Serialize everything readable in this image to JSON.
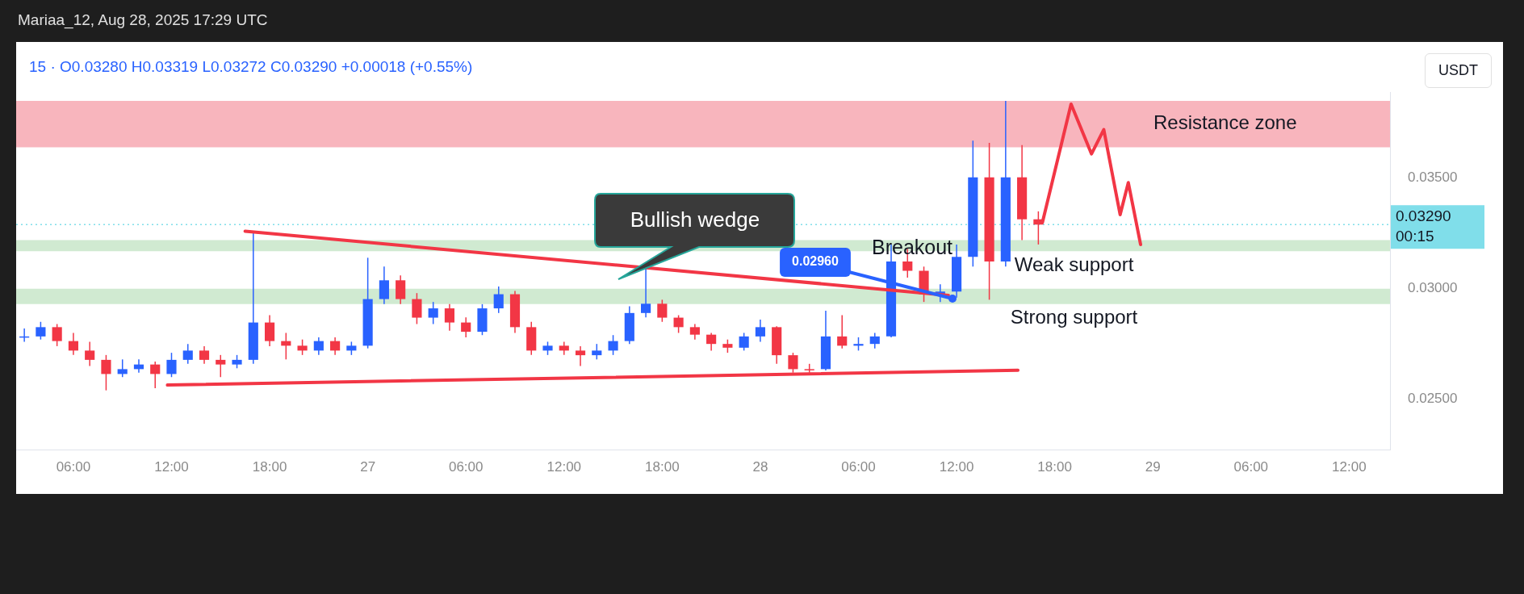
{
  "chart_data": {
    "type": "candlestick",
    "title": "Mariaa_12, Aug 28, 2025 17:29 UTC",
    "subtitle": "15 · O0.03280 H0.03319 L0.03272 C0.03290 +0.00018 (+0.55%)",
    "x": [
      "2025-08-26T03:00",
      "2025-08-26T04:00",
      "2025-08-26T05:00",
      "2025-08-26T06:00",
      "2025-08-26T07:00",
      "2025-08-26T08:00",
      "2025-08-26T09:00",
      "2025-08-26T10:00",
      "2025-08-26T11:00",
      "2025-08-26T12:00",
      "2025-08-26T13:00",
      "2025-08-26T14:00",
      "2025-08-26T15:00",
      "2025-08-26T16:00",
      "2025-08-26T17:00",
      "2025-08-26T18:00",
      "2025-08-26T19:00",
      "2025-08-26T20:00",
      "2025-08-26T21:00",
      "2025-08-26T22:00",
      "2025-08-26T23:00",
      "2025-08-27T00:00",
      "2025-08-27T01:00",
      "2025-08-27T02:00",
      "2025-08-27T03:00",
      "2025-08-27T04:00",
      "2025-08-27T05:00",
      "2025-08-27T06:00",
      "2025-08-27T07:00",
      "2025-08-27T08:00",
      "2025-08-27T09:00",
      "2025-08-27T10:00",
      "2025-08-27T11:00",
      "2025-08-27T12:00",
      "2025-08-27T13:00",
      "2025-08-27T14:00",
      "2025-08-27T15:00",
      "2025-08-27T16:00",
      "2025-08-27T17:00",
      "2025-08-27T18:00",
      "2025-08-27T19:00",
      "2025-08-27T20:00",
      "2025-08-27T21:00",
      "2025-08-27T22:00",
      "2025-08-27T23:00",
      "2025-08-28T00:00",
      "2025-08-28T01:00",
      "2025-08-28T02:00",
      "2025-08-28T03:00",
      "2025-08-28T04:00",
      "2025-08-28T05:00",
      "2025-08-28T06:00",
      "2025-08-28T07:00",
      "2025-08-28T08:00",
      "2025-08-28T09:00",
      "2025-08-28T10:00",
      "2025-08-28T11:00",
      "2025-08-28T12:00",
      "2025-08-28T13:00",
      "2025-08-28T14:00",
      "2025-08-28T15:00",
      "2025-08-28T16:00",
      "2025-08-28T17:00"
    ],
    "ohlc": [
      [
        0.0278,
        0.0282,
        0.0276,
        0.02784
      ],
      [
        0.02784,
        0.0285,
        0.0277,
        0.02826
      ],
      [
        0.02826,
        0.0284,
        0.0274,
        0.02763
      ],
      [
        0.02763,
        0.028,
        0.027,
        0.0272
      ],
      [
        0.0272,
        0.0276,
        0.0265,
        0.02678
      ],
      [
        0.02678,
        0.027,
        0.0254,
        0.02614
      ],
      [
        0.02614,
        0.0268,
        0.026,
        0.02636
      ],
      [
        0.02636,
        0.0268,
        0.0262,
        0.02657
      ],
      [
        0.02657,
        0.0267,
        0.0255,
        0.02614
      ],
      [
        0.02614,
        0.0271,
        0.026,
        0.02678
      ],
      [
        0.02678,
        0.0275,
        0.0266,
        0.0272
      ],
      [
        0.0272,
        0.0274,
        0.0266,
        0.02678
      ],
      [
        0.02678,
        0.027,
        0.026,
        0.02657
      ],
      [
        0.02657,
        0.027,
        0.0264,
        0.02678
      ],
      [
        0.02678,
        0.0326,
        0.0266,
        0.02847
      ],
      [
        0.02847,
        0.0288,
        0.0274,
        0.02763
      ],
      [
        0.02763,
        0.028,
        0.0268,
        0.02742
      ],
      [
        0.02742,
        0.0277,
        0.027,
        0.0272
      ],
      [
        0.0272,
        0.0278,
        0.027,
        0.02763
      ],
      [
        0.02763,
        0.0278,
        0.027,
        0.0272
      ],
      [
        0.0272,
        0.0276,
        0.027,
        0.02742
      ],
      [
        0.02742,
        0.0314,
        0.0273,
        0.02953
      ],
      [
        0.02953,
        0.031,
        0.0293,
        0.03038
      ],
      [
        0.03038,
        0.0306,
        0.0293,
        0.02953
      ],
      [
        0.02953,
        0.0298,
        0.0284,
        0.02869
      ],
      [
        0.02869,
        0.0294,
        0.0284,
        0.02911
      ],
      [
        0.02911,
        0.0293,
        0.0281,
        0.02847
      ],
      [
        0.02847,
        0.0287,
        0.0278,
        0.02805
      ],
      [
        0.02805,
        0.0293,
        0.0279,
        0.02911
      ],
      [
        0.02911,
        0.0301,
        0.0289,
        0.02975
      ],
      [
        0.02975,
        0.0299,
        0.028,
        0.02826
      ],
      [
        0.02826,
        0.0285,
        0.027,
        0.0272
      ],
      [
        0.0272,
        0.0276,
        0.027,
        0.02742
      ],
      [
        0.02742,
        0.0276,
        0.027,
        0.0272
      ],
      [
        0.0272,
        0.0274,
        0.0265,
        0.02699
      ],
      [
        0.02699,
        0.0275,
        0.0268,
        0.0272
      ],
      [
        0.0272,
        0.0279,
        0.027,
        0.02763
      ],
      [
        0.02763,
        0.0292,
        0.0275,
        0.0289
      ],
      [
        0.0289,
        0.0309,
        0.0287,
        0.02932
      ],
      [
        0.02932,
        0.0295,
        0.0285,
        0.02869
      ],
      [
        0.02869,
        0.0288,
        0.028,
        0.02826
      ],
      [
        0.02826,
        0.0284,
        0.0277,
        0.02792
      ],
      [
        0.02792,
        0.028,
        0.0272,
        0.0275
      ],
      [
        0.0275,
        0.0277,
        0.0271,
        0.02733
      ],
      [
        0.02733,
        0.028,
        0.0272,
        0.02784
      ],
      [
        0.02784,
        0.0286,
        0.0276,
        0.02826
      ],
      [
        0.02826,
        0.0283,
        0.0266,
        0.02699
      ],
      [
        0.02699,
        0.0271,
        0.0262,
        0.02636
      ],
      [
        0.02636,
        0.0266,
        0.0262,
        0.02636
      ],
      [
        0.02636,
        0.029,
        0.0263,
        0.02784
      ],
      [
        0.02784,
        0.0288,
        0.0273,
        0.02742
      ],
      [
        0.02742,
        0.0278,
        0.0272,
        0.0275
      ],
      [
        0.0275,
        0.028,
        0.0273,
        0.02784
      ],
      [
        0.02784,
        0.032,
        0.0278,
        0.03123
      ],
      [
        0.03123,
        0.0318,
        0.0305,
        0.03081
      ],
      [
        0.03081,
        0.031,
        0.0294,
        0.02975
      ],
      [
        0.02975,
        0.0302,
        0.0294,
        0.02987
      ],
      [
        0.02987,
        0.032,
        0.0296,
        0.03144
      ],
      [
        0.03144,
        0.0367,
        0.031,
        0.03504
      ],
      [
        0.03504,
        0.0366,
        0.0295,
        0.03123
      ],
      [
        0.03123,
        0.0385,
        0.031,
        0.03504
      ],
      [
        0.03504,
        0.0365,
        0.0322,
        0.03314
      ],
      [
        0.03314,
        0.0335,
        0.032,
        0.0329
      ]
    ],
    "colors": [
      "#2962ff",
      "#2962ff",
      "#f23645",
      "#f23645",
      "#f23645",
      "#f23645",
      "#2962ff",
      "#2962ff",
      "#f23645",
      "#2962ff",
      "#2962ff",
      "#f23645",
      "#f23645",
      "#2962ff",
      "#2962ff",
      "#f23645",
      "#f23645",
      "#f23645",
      "#2962ff",
      "#f23645",
      "#2962ff",
      "#2962ff",
      "#2962ff",
      "#f23645",
      "#f23645",
      "#2962ff",
      "#f23645",
      "#f23645",
      "#2962ff",
      "#2962ff",
      "#f23645",
      "#f23645",
      "#2962ff",
      "#f23645",
      "#f23645",
      "#2962ff",
      "#2962ff",
      "#2962ff",
      "#2962ff",
      "#f23645",
      "#f23645",
      "#f23645",
      "#f23645",
      "#f23645",
      "#2962ff",
      "#2962ff",
      "#f23645",
      "#f23645",
      "#f23645",
      "#2962ff",
      "#f23645",
      "#2962ff",
      "#2962ff",
      "#2962ff",
      "#f23645",
      "#f23645",
      "#2962ff",
      "#2962ff",
      "#2962ff",
      "#f23645",
      "#2962ff",
      "#f23645",
      "#f23645"
    ],
    "series": [
      {
        "type": "line",
        "color": "#f23645",
        "x": [
          "2025-08-26T16:30",
          "2025-08-28T11:30"
        ],
        "values": [
          0.0326,
          0.0297
        ]
      },
      {
        "type": "line",
        "color": "#f23645",
        "x": [
          "2025-08-26T11:45",
          "2025-08-28T15:45"
        ],
        "values": [
          0.02564,
          0.02631
        ]
      },
      {
        "type": "line",
        "color": "#f23645",
        "x": [
          "2025-08-28T17:15",
          "2025-08-28T19:00",
          "2025-08-28T20:15",
          "2025-08-28T21:00",
          "2025-08-28T22:00",
          "2025-08-28T22:30",
          "2025-08-28T23:15"
        ],
        "values": [
          0.033,
          0.03835,
          0.0361,
          0.0372,
          0.03335,
          0.0348,
          0.032
        ]
      }
    ],
    "bands": [
      {
        "axis": "y",
        "from": 0.0364,
        "to": 0.0385,
        "label": "Resistance zone",
        "color": "#f7a8b2"
      },
      {
        "axis": "y",
        "from": 0.0317,
        "to": 0.0322,
        "label": "Weak support",
        "color": "#c8e6c9"
      },
      {
        "axis": "y",
        "from": 0.0293,
        "to": 0.03,
        "label": "Strong support",
        "color": "#c8e6c9"
      }
    ],
    "ref_lines": [
      {
        "axis": "y",
        "value": 0.0329,
        "label": "0.03290",
        "color": "#80deea",
        "line_style": "dotted"
      }
    ],
    "annotations": [
      "Bullish wedge",
      "Breakout",
      {
        "text": "0.02960",
        "x": "2025-08-28T11:45",
        "y": 0.02955
      },
      "USDT",
      "00:15"
    ],
    "xlim": [
      "2025-08-26T02:30",
      "2025-08-29T14:30"
    ],
    "xticks": [
      {
        "value": "2025-08-26T06:00",
        "label": "06:00"
      },
      {
        "value": "2025-08-26T12:00",
        "label": "12:00"
      },
      {
        "value": "2025-08-26T18:00",
        "label": "18:00"
      },
      {
        "value": "2025-08-27T00:00",
        "label": "27"
      },
      {
        "value": "2025-08-27T06:00",
        "label": "06:00"
      },
      {
        "value": "2025-08-27T12:00",
        "label": "12:00"
      },
      {
        "value": "2025-08-27T18:00",
        "label": "18:00"
      },
      {
        "value": "2025-08-28T00:00",
        "label": "28"
      },
      {
        "value": "2025-08-28T06:00",
        "label": "06:00"
      },
      {
        "value": "2025-08-28T12:00",
        "label": "12:00"
      },
      {
        "value": "2025-08-28T18:00",
        "label": "18:00"
      },
      {
        "value": "2025-08-29T00:00",
        "label": "29"
      },
      {
        "value": "2025-08-29T06:00",
        "label": "06:00"
      },
      {
        "value": "2025-08-29T12:00",
        "label": "12:00"
      }
    ],
    "ylim": [
      0.0227,
      0.0389
    ],
    "yticks": [
      {
        "value": 0.025,
        "label": "0.02500"
      },
      {
        "value": 0.03,
        "label": "0.03000"
      },
      {
        "value": 0.035,
        "label": "0.03500"
      }
    ],
    "grid": false,
    "legend": false
  }
}
